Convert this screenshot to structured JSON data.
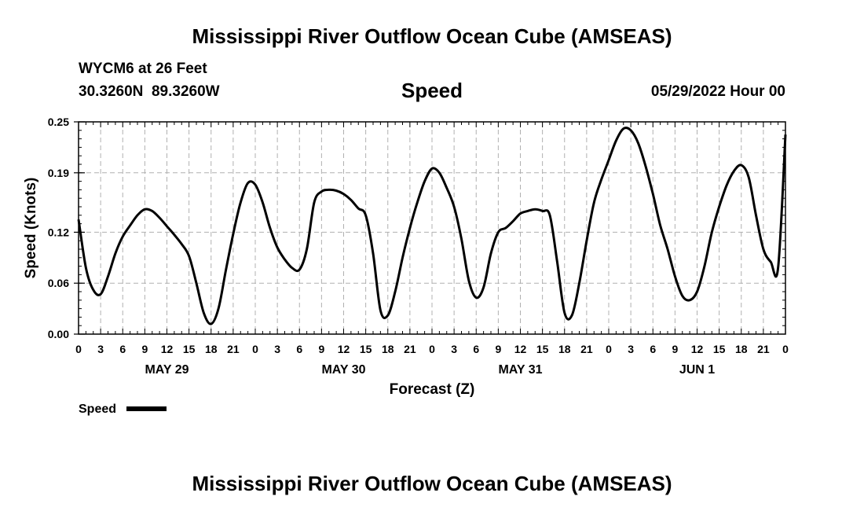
{
  "page": {
    "title": "Mississippi River Outflow Ocean Cube (AMSEAS)",
    "footer_title": "Mississippi River Outflow Ocean Cube (AMSEAS)",
    "station_line": "WYCM6 at 26 Feet",
    "coord_line": "30.3260N  89.3260W",
    "variable": "Speed",
    "datetime": "05/29/2022 Hour 00",
    "legend_label": "Speed"
  },
  "chart_data": {
    "type": "line",
    "title": "Speed",
    "xlabel": "Forecast (Z)",
    "ylabel": "Speed (Knots)",
    "xlim": [
      0,
      96
    ],
    "ylim": [
      0,
      0.25
    ],
    "yticks": [
      0.0,
      0.06,
      0.12,
      0.19,
      0.25
    ],
    "ytick_labels": [
      "0.00",
      "0.06",
      "0.12",
      "0.19",
      "0.25"
    ],
    "xticks": [
      0,
      3,
      6,
      9,
      12,
      15,
      18,
      21,
      24,
      27,
      30,
      33,
      36,
      39,
      42,
      45,
      48,
      51,
      54,
      57,
      60,
      63,
      66,
      69,
      72,
      75,
      78,
      81,
      84,
      87,
      90,
      93,
      96
    ],
    "xtick_labels": [
      "0",
      "3",
      "6",
      "9",
      "12",
      "15",
      "18",
      "21",
      "0",
      "3",
      "6",
      "9",
      "12",
      "15",
      "18",
      "21",
      "0",
      "3",
      "6",
      "9",
      "12",
      "15",
      "18",
      "21",
      "0",
      "3",
      "6",
      "9",
      "12",
      "15",
      "18",
      "21",
      "0"
    ],
    "day_labels": [
      {
        "label": "MAY 29",
        "x": 12
      },
      {
        "label": "MAY 30",
        "x": 36
      },
      {
        "label": "MAY 31",
        "x": 60
      },
      {
        "label": "JUN 1",
        "x": 84
      }
    ],
    "legend": "bottom-left",
    "grid": true,
    "series": [
      {
        "name": "Speed",
        "color": "#000000",
        "x": [
          0,
          1,
          2,
          3,
          4,
          5,
          6,
          7,
          8,
          9,
          10,
          11,
          12,
          13,
          14,
          15,
          16,
          17,
          18,
          19,
          20,
          21,
          22,
          23,
          24,
          25,
          26,
          27,
          28,
          29,
          30,
          31,
          32,
          33,
          34,
          35,
          36,
          37,
          38,
          39,
          40,
          41,
          42,
          43,
          44,
          45,
          46,
          47,
          48,
          49,
          50,
          51,
          52,
          53,
          54,
          55,
          56,
          57,
          58,
          59,
          60,
          61,
          62,
          63,
          64,
          65,
          66,
          67,
          68,
          69,
          70,
          71,
          72,
          73,
          74,
          75,
          76,
          77,
          78,
          79,
          80,
          81,
          82,
          83,
          84,
          85,
          86,
          87,
          88,
          89,
          90,
          91,
          92,
          93,
          94,
          95,
          96
        ],
        "values": [
          0.135,
          0.078,
          0.052,
          0.047,
          0.068,
          0.095,
          0.115,
          0.128,
          0.14,
          0.147,
          0.145,
          0.137,
          0.127,
          0.117,
          0.106,
          0.092,
          0.06,
          0.025,
          0.012,
          0.03,
          0.075,
          0.118,
          0.155,
          0.178,
          0.176,
          0.155,
          0.125,
          0.102,
          0.088,
          0.078,
          0.076,
          0.1,
          0.155,
          0.168,
          0.17,
          0.169,
          0.165,
          0.158,
          0.148,
          0.14,
          0.095,
          0.028,
          0.022,
          0.05,
          0.09,
          0.125,
          0.155,
          0.18,
          0.195,
          0.19,
          0.172,
          0.15,
          0.112,
          0.063,
          0.043,
          0.055,
          0.095,
          0.12,
          0.125,
          0.133,
          0.142,
          0.145,
          0.147,
          0.145,
          0.14,
          0.085,
          0.025,
          0.022,
          0.06,
          0.11,
          0.155,
          0.182,
          0.205,
          0.228,
          0.242,
          0.24,
          0.225,
          0.198,
          0.165,
          0.128,
          0.1,
          0.068,
          0.045,
          0.04,
          0.05,
          0.08,
          0.12,
          0.15,
          0.175,
          0.192,
          0.199,
          0.185,
          0.14,
          0.1,
          0.085,
          0.078,
          0.235
        ]
      }
    ]
  }
}
